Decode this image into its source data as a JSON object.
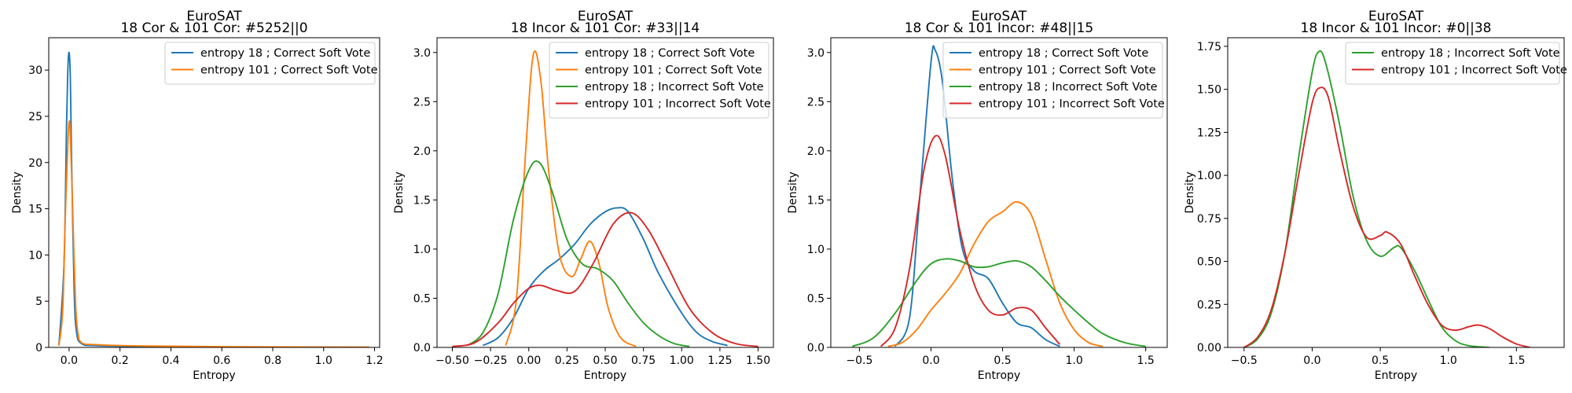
{
  "chart_data": [
    {
      "type": "line",
      "title": "EuroSAT",
      "subtitle": "18 Cor & 101 Cor: #5252||0",
      "xlabel": "Entropy",
      "ylabel": "Density",
      "xlim": [
        -0.08,
        1.22
      ],
      "ylim": [
        0,
        33.5
      ],
      "xticks": [
        0.0,
        0.2,
        0.4,
        0.6,
        0.8,
        1.0,
        1.2
      ],
      "xtick_labels": [
        "0.0",
        "0.2",
        "0.4",
        "0.6",
        "0.8",
        "1.0",
        "1.2"
      ],
      "yticks": [
        0,
        5,
        10,
        15,
        20,
        25,
        30
      ],
      "ytick_labels": [
        "0",
        "5",
        "10",
        "15",
        "20",
        "25",
        "30"
      ],
      "legend_position": "top-right",
      "grid": false,
      "series": [
        {
          "name": "entropy 18 ; Correct Soft Vote",
          "color": "#1f77b4",
          "x": [
            -0.04,
            -0.02,
            -0.01,
            -0.005,
            0.0,
            0.005,
            0.01,
            0.02,
            0.03,
            0.05,
            0.1,
            0.3,
            0.6,
            1.0,
            1.18
          ],
          "y": [
            0.2,
            9,
            24,
            30,
            31.9,
            29,
            20,
            6,
            1.5,
            0.4,
            0.2,
            0.1,
            0.05,
            0.02,
            0.01
          ]
        },
        {
          "name": "entropy 101 ; Correct Soft Vote",
          "color": "#ff7f0e",
          "x": [
            -0.04,
            -0.025,
            -0.015,
            -0.005,
            0.0,
            0.005,
            0.015,
            0.025,
            0.035,
            0.05,
            0.1,
            0.3,
            0.6,
            1.0,
            1.18
          ],
          "y": [
            0.2,
            4,
            14,
            22,
            24.4,
            23,
            14,
            5,
            1.5,
            0.5,
            0.3,
            0.15,
            0.08,
            0.04,
            0.02
          ]
        }
      ]
    },
    {
      "type": "line",
      "title": "EuroSAT",
      "subtitle": "18 Incor & 101 Cor: #33||14",
      "xlabel": "Entropy",
      "ylabel": "Density",
      "xlim": [
        -0.6,
        1.6
      ],
      "ylim": [
        0,
        3.15
      ],
      "xticks": [
        -0.5,
        -0.25,
        0.0,
        0.25,
        0.5,
        0.75,
        1.0,
        1.25,
        1.5
      ],
      "xtick_labels": [
        "−0.50",
        "−0.25",
        "0.00",
        "0.25",
        "0.50",
        "0.75",
        "1.00",
        "1.25",
        "1.50"
      ],
      "yticks": [
        0,
        0.5,
        1.0,
        1.5,
        2.0,
        2.5,
        3.0
      ],
      "ytick_labels": [
        "0.0",
        "0.5",
        "1.0",
        "1.5",
        "2.0",
        "2.5",
        "3.0"
      ],
      "legend_position": "top-right",
      "grid": false,
      "series": [
        {
          "name": "entropy 18 ; Correct Soft Vote",
          "color": "#1f77b4",
          "x": [
            -0.3,
            -0.2,
            -0.1,
            0.0,
            0.1,
            0.2,
            0.3,
            0.4,
            0.5,
            0.58,
            0.65,
            0.75,
            0.85,
            1.0,
            1.1,
            1.2,
            1.3
          ],
          "y": [
            0.02,
            0.1,
            0.3,
            0.6,
            0.78,
            0.9,
            1.05,
            1.25,
            1.38,
            1.42,
            1.38,
            1.1,
            0.75,
            0.35,
            0.15,
            0.06,
            0.02
          ]
        },
        {
          "name": "entropy 101 ; Correct Soft Vote",
          "color": "#ff7f0e",
          "x": [
            -0.15,
            -0.08,
            -0.02,
            0.03,
            0.08,
            0.13,
            0.2,
            0.28,
            0.34,
            0.4,
            0.46,
            0.52,
            0.6,
            0.7
          ],
          "y": [
            0.02,
            0.5,
            2.0,
            2.98,
            2.7,
            1.8,
            0.95,
            0.72,
            0.9,
            1.08,
            0.85,
            0.4,
            0.1,
            0.01
          ]
        },
        {
          "name": "entropy 18 ; Incorrect Soft Vote",
          "color": "#2ca02c",
          "x": [
            -0.4,
            -0.3,
            -0.2,
            -0.1,
            0.0,
            0.07,
            0.15,
            0.25,
            0.35,
            0.45,
            0.55,
            0.65,
            0.75,
            0.85,
            0.95,
            1.05
          ],
          "y": [
            0.02,
            0.15,
            0.55,
            1.3,
            1.8,
            1.88,
            1.6,
            1.1,
            0.85,
            0.8,
            0.68,
            0.45,
            0.25,
            0.12,
            0.04,
            0.01
          ]
        },
        {
          "name": "entropy 101 ; Incorrect Soft Vote",
          "color": "#d62728",
          "x": [
            -0.5,
            -0.35,
            -0.2,
            -0.1,
            0.0,
            0.08,
            0.18,
            0.3,
            0.42,
            0.55,
            0.67,
            0.78,
            0.9,
            1.05,
            1.2,
            1.35,
            1.5
          ],
          "y": [
            0.01,
            0.05,
            0.25,
            0.45,
            0.6,
            0.63,
            0.58,
            0.57,
            0.85,
            1.25,
            1.37,
            1.2,
            0.85,
            0.4,
            0.15,
            0.04,
            0.01
          ]
        }
      ]
    },
    {
      "type": "line",
      "title": "EuroSAT",
      "subtitle": "18 Cor & 101 Incor: #48||15",
      "xlabel": "Entropy",
      "ylabel": "Density",
      "xlim": [
        -0.7,
        1.65
      ],
      "ylim": [
        0,
        3.15
      ],
      "xticks": [
        -0.5,
        0.0,
        0.5,
        1.0,
        1.5
      ],
      "xtick_labels": [
        "−0.5",
        "0.0",
        "0.5",
        "1.0",
        "1.5"
      ],
      "yticks": [
        0,
        0.5,
        1.0,
        1.5,
        2.0,
        2.5,
        3.0
      ],
      "ytick_labels": [
        "0.0",
        "0.5",
        "1.0",
        "1.5",
        "2.0",
        "2.5",
        "3.0"
      ],
      "legend_position": "top-right",
      "grid": false,
      "series": [
        {
          "name": "entropy 18 ; Correct Soft Vote",
          "color": "#1f77b4",
          "x": [
            -0.25,
            -0.15,
            -0.08,
            0.0,
            0.03,
            0.08,
            0.15,
            0.22,
            0.3,
            0.4,
            0.5,
            0.6,
            0.7,
            0.8,
            0.9
          ],
          "y": [
            0.01,
            0.3,
            1.5,
            2.9,
            3.02,
            2.7,
            1.7,
            1.0,
            0.78,
            0.7,
            0.45,
            0.25,
            0.2,
            0.08,
            0.01
          ]
        },
        {
          "name": "entropy 101 ; Correct Soft Vote",
          "color": "#ff7f0e",
          "x": [
            -0.3,
            -0.2,
            -0.1,
            0.0,
            0.1,
            0.2,
            0.3,
            0.4,
            0.5,
            0.6,
            0.7,
            0.8,
            0.9,
            1.0,
            1.1,
            1.2
          ],
          "y": [
            0.01,
            0.05,
            0.18,
            0.38,
            0.55,
            0.75,
            1.05,
            1.28,
            1.38,
            1.48,
            1.35,
            0.9,
            0.45,
            0.18,
            0.05,
            0.01
          ]
        },
        {
          "name": "entropy 18 ; Incorrect Soft Vote",
          "color": "#2ca02c",
          "x": [
            -0.55,
            -0.4,
            -0.25,
            -0.1,
            0.0,
            0.1,
            0.2,
            0.3,
            0.4,
            0.5,
            0.6,
            0.7,
            0.8,
            0.9,
            1.0,
            1.1,
            1.2,
            1.35,
            1.5
          ],
          "y": [
            0.01,
            0.1,
            0.35,
            0.68,
            0.85,
            0.9,
            0.88,
            0.82,
            0.82,
            0.86,
            0.88,
            0.82,
            0.68,
            0.52,
            0.38,
            0.25,
            0.14,
            0.05,
            0.01
          ]
        },
        {
          "name": "entropy 101 ; Incorrect Soft Vote",
          "color": "#d62728",
          "x": [
            -0.35,
            -0.25,
            -0.15,
            -0.05,
            0.03,
            0.1,
            0.2,
            0.3,
            0.4,
            0.5,
            0.6,
            0.7,
            0.8,
            0.9
          ],
          "y": [
            0.01,
            0.2,
            0.8,
            1.8,
            2.15,
            1.95,
            1.2,
            0.65,
            0.38,
            0.33,
            0.4,
            0.38,
            0.2,
            0.03
          ]
        }
      ]
    },
    {
      "type": "line",
      "title": "EuroSAT",
      "subtitle": "18 Incor & 101 Incor: #0||38",
      "xlabel": "Entropy",
      "ylabel": "Density",
      "xlim": [
        -0.62,
        1.85
      ],
      "ylim": [
        0,
        1.8
      ],
      "xticks": [
        -0.5,
        0.0,
        0.5,
        1.0,
        1.5
      ],
      "xtick_labels": [
        "−0.5",
        "0.0",
        "0.5",
        "1.0",
        "1.5"
      ],
      "yticks": [
        0,
        0.25,
        0.5,
        0.75,
        1.0,
        1.25,
        1.5,
        1.75
      ],
      "ytick_labels": [
        "0.00",
        "0.25",
        "0.50",
        "0.75",
        "1.00",
        "1.25",
        "1.50",
        "1.75"
      ],
      "legend_position": "top-right",
      "grid": false,
      "series": [
        {
          "name": "entropy 18 ; Incorrect Soft Vote",
          "color": "#2ca02c",
          "x": [
            -0.5,
            -0.4,
            -0.3,
            -0.2,
            -0.1,
            0.0,
            0.05,
            0.1,
            0.2,
            0.3,
            0.4,
            0.5,
            0.6,
            0.65,
            0.75,
            0.85,
            0.95,
            1.05,
            1.15,
            1.3
          ],
          "y": [
            0.0,
            0.05,
            0.2,
            0.55,
            1.1,
            1.6,
            1.72,
            1.65,
            1.3,
            0.88,
            0.62,
            0.53,
            0.58,
            0.58,
            0.45,
            0.28,
            0.12,
            0.04,
            0.01,
            0.0
          ]
        },
        {
          "name": "entropy 101 ; Incorrect Soft Vote",
          "color": "#d62728",
          "x": [
            -0.5,
            -0.4,
            -0.3,
            -0.2,
            -0.1,
            0.0,
            0.06,
            0.12,
            0.2,
            0.3,
            0.4,
            0.5,
            0.55,
            0.65,
            0.75,
            0.85,
            0.95,
            1.05,
            1.15,
            1.22,
            1.3,
            1.4,
            1.5,
            1.6
          ],
          "y": [
            0.0,
            0.06,
            0.22,
            0.55,
            1.0,
            1.42,
            1.51,
            1.45,
            1.15,
            0.82,
            0.64,
            0.65,
            0.67,
            0.6,
            0.42,
            0.25,
            0.13,
            0.1,
            0.12,
            0.13,
            0.11,
            0.06,
            0.02,
            0.0
          ]
        }
      ]
    }
  ]
}
